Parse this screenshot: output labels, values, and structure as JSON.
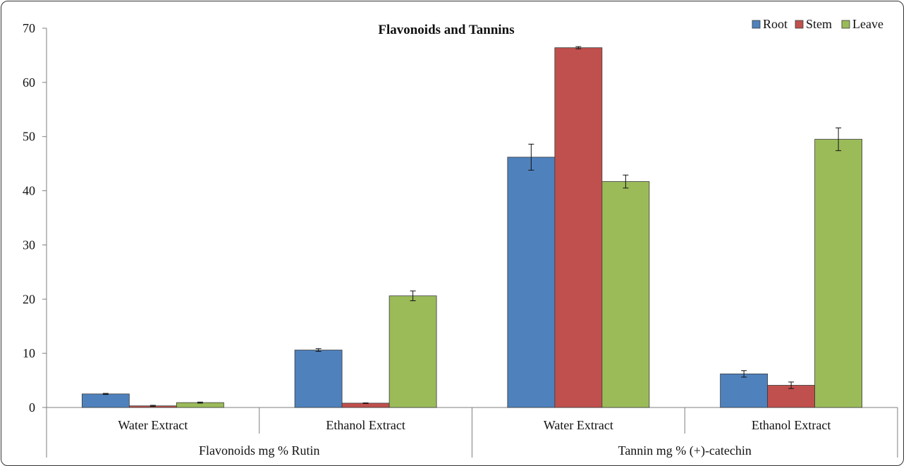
{
  "chart_data": {
    "type": "bar",
    "title": "Flavonoids and Tannins",
    "ylim": [
      0,
      70
    ],
    "yticks": [
      0,
      10,
      20,
      30,
      40,
      50,
      60,
      70
    ],
    "categories": [
      "Water Extract",
      "Ethanol Extract",
      "Water Extract",
      "Ethanol Extract"
    ],
    "groups": [
      {
        "label": "Flavonoids mg % Rutin",
        "categories": [
          0,
          1
        ]
      },
      {
        "label": "Tannin mg % (+)-catechin",
        "categories": [
          2,
          3
        ]
      }
    ],
    "series": [
      {
        "name": "Root",
        "color": "#4F81BD",
        "values": [
          2.5,
          10.6,
          46.2,
          6.2
        ],
        "errors": [
          0.1,
          0.25,
          2.4,
          0.6
        ]
      },
      {
        "name": "Stem",
        "color": "#C0504D",
        "values": [
          0.3,
          0.8,
          66.4,
          4.1
        ],
        "errors": [
          0.1,
          0.05,
          0.2,
          0.6
        ]
      },
      {
        "name": "Leave",
        "color": "#9BBB59",
        "values": [
          0.9,
          20.6,
          41.7,
          49.5
        ],
        "errors": [
          0.1,
          0.9,
          1.2,
          2.1
        ]
      }
    ],
    "legend_position": "top-right",
    "grid": false
  }
}
